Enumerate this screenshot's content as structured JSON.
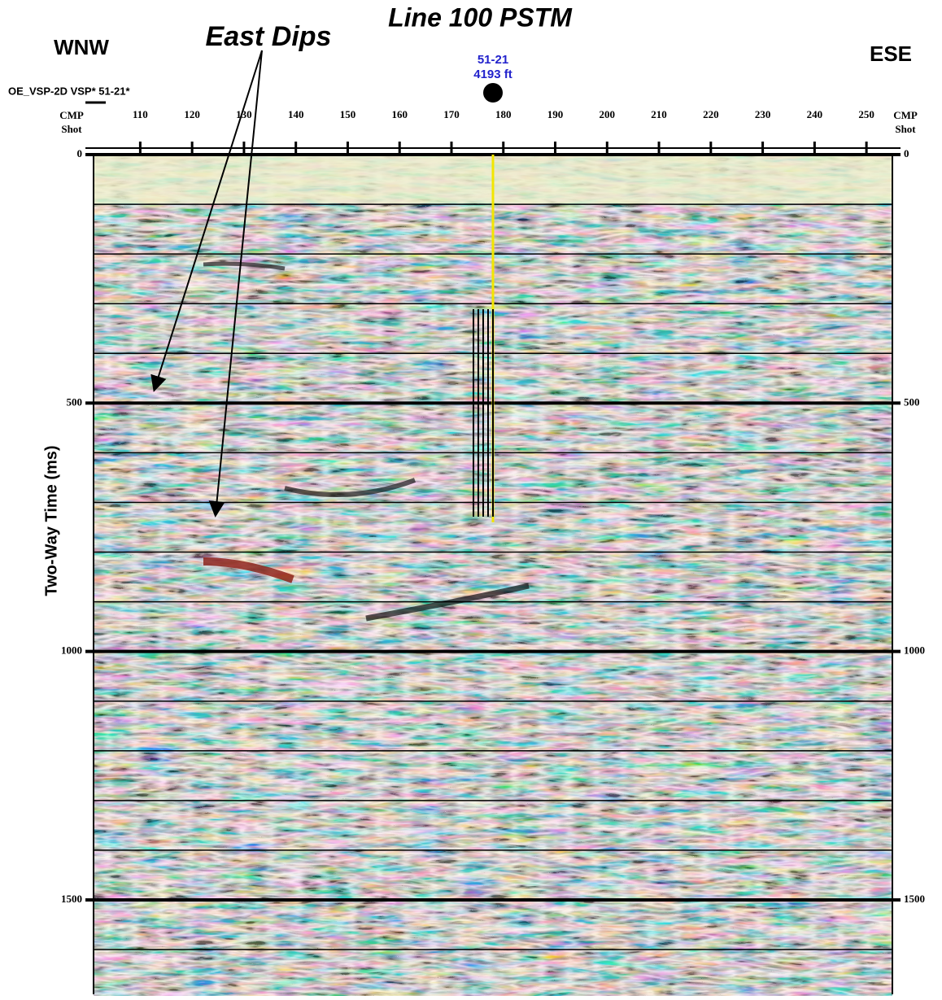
{
  "chart_data": {
    "type": "seismic",
    "title": "Line 100 PSTM",
    "left_direction": "WNW",
    "right_direction": "ESE",
    "annotation": "East Dips",
    "survey_label": "OE_VSP-2D VSP* 51-21*",
    "x_axis_label": "CMP",
    "x_axis_sublabel": "Shot",
    "y_axis_label": "Two-Way Time (ms)",
    "xlim": [
      101,
      255
    ],
    "xticks": [
      110,
      120,
      130,
      140,
      150,
      160,
      170,
      180,
      190,
      200,
      210,
      220,
      230,
      240,
      250
    ],
    "ylim": [
      0,
      1690
    ],
    "yticks": [
      0,
      500,
      1000,
      1500
    ],
    "minor_yticks": [
      100,
      200,
      300,
      400,
      600,
      700,
      800,
      900,
      1100,
      1200,
      1300,
      1400,
      1600
    ],
    "well": {
      "name": "51-21",
      "depth_label": "4193 ft",
      "cmp": 178,
      "bottom_time": 740,
      "color": "#f2e600"
    }
  }
}
